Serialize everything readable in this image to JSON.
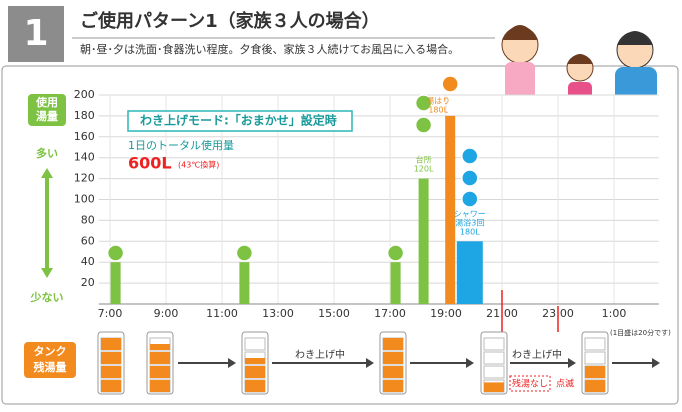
{
  "header": {
    "number": "1",
    "title": "ご使用パターン1（家族３人の場合）",
    "subtitle": "朝･昼･夕は洗面･食器洗い程度。夕食後、家族３人続けてお風呂に入る場合。"
  },
  "chart_data": {
    "type": "bar",
    "ylabel": [
      "使用",
      "湯量"
    ],
    "more": "多い",
    "less": "少ない",
    "mode_box": "わき上げモード:「おまかせ」設定時",
    "total_label": "1日のトータル使用量",
    "total_value": "600L",
    "total_note": "(43℃換算)",
    "ylim": [
      0,
      200
    ],
    "yticks": [
      20,
      40,
      60,
      80,
      100,
      120,
      140,
      160,
      180,
      200
    ],
    "xlim": [
      6.6,
      26.6
    ],
    "xticks": [
      {
        "value": 7,
        "label": "7:00"
      },
      {
        "value": 9,
        "label": "9:00"
      },
      {
        "value": 11,
        "label": "11:00"
      },
      {
        "value": 13,
        "label": "13:00"
      },
      {
        "value": 15,
        "label": "15:00"
      },
      {
        "value": 17,
        "label": "17:00"
      },
      {
        "value": 19,
        "label": "19:00"
      },
      {
        "value": 21,
        "label": "21:00"
      },
      {
        "value": 23,
        "label": "23:00"
      },
      {
        "value": 25,
        "label": "1:00"
      }
    ],
    "grid": true,
    "series": [
      {
        "color": "#7dc242",
        "x": [
          7.2,
          11.8,
          17.2,
          18.2
        ],
        "values": [
          40,
          40,
          40,
          120
        ]
      },
      {
        "color": "#f28a1e",
        "x": [
          19.15
        ],
        "values": [
          180
        ]
      },
      {
        "color": "#1ea5e3",
        "x": [
          19.85
        ],
        "values": [
          60
        ]
      }
    ],
    "annotations": [
      {
        "series": 0,
        "point": 3,
        "lines": [
          "台所",
          "120L"
        ]
      },
      {
        "series": 1,
        "point": 0,
        "lines": [
          "湯はり",
          "180L"
        ]
      },
      {
        "series": 2,
        "point": 0,
        "lines": [
          "シャワー",
          "湯浴3回",
          "180L"
        ]
      }
    ]
  },
  "tank": {
    "label": [
      "タンク",
      "残湯量"
    ],
    "heating": [
      "わき上げ中",
      "わき上げ中"
    ],
    "empty": "残湯なし",
    "blink": "点滅",
    "note": "(1目盛は20分です)"
  }
}
